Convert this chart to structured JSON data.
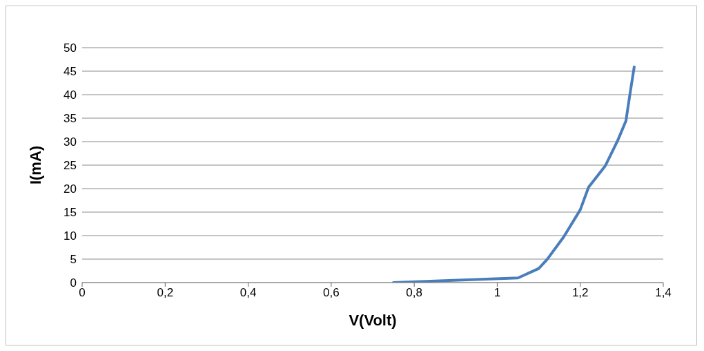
{
  "chart_data": {
    "type": "line",
    "xlabel": "V(Volt)",
    "ylabel": "I(mA)",
    "x": [
      0.75,
      1.05,
      1.1,
      1.12,
      1.16,
      1.2,
      1.22,
      1.26,
      1.29,
      1.31,
      1.32,
      1.33
    ],
    "series": [
      {
        "color": "#4a7ebb",
        "values": [
          0,
          1,
          3,
          4.9,
          9.7,
          15.5,
          20.3,
          24.8,
          30.2,
          34.4,
          40.3,
          45.9
        ]
      }
    ],
    "xlim": [
      0,
      1.4
    ],
    "xticks": [
      0,
      {
        "value": 0.2,
        "label": "0,2"
      },
      {
        "value": 0.4,
        "label": "0,4"
      },
      {
        "value": 0.6,
        "label": "0,6"
      },
      {
        "value": 0.8,
        "label": "0,8"
      },
      1,
      {
        "value": 1.2,
        "label": "1,2"
      },
      {
        "value": 1.4,
        "label": "1,4"
      }
    ],
    "ylim": [
      0,
      50
    ],
    "yticks": [
      0,
      5,
      10,
      15,
      20,
      25,
      30,
      35,
      40,
      45,
      50
    ],
    "grid": "y",
    "marker": "none",
    "line_style": "solid",
    "legend": false
  }
}
